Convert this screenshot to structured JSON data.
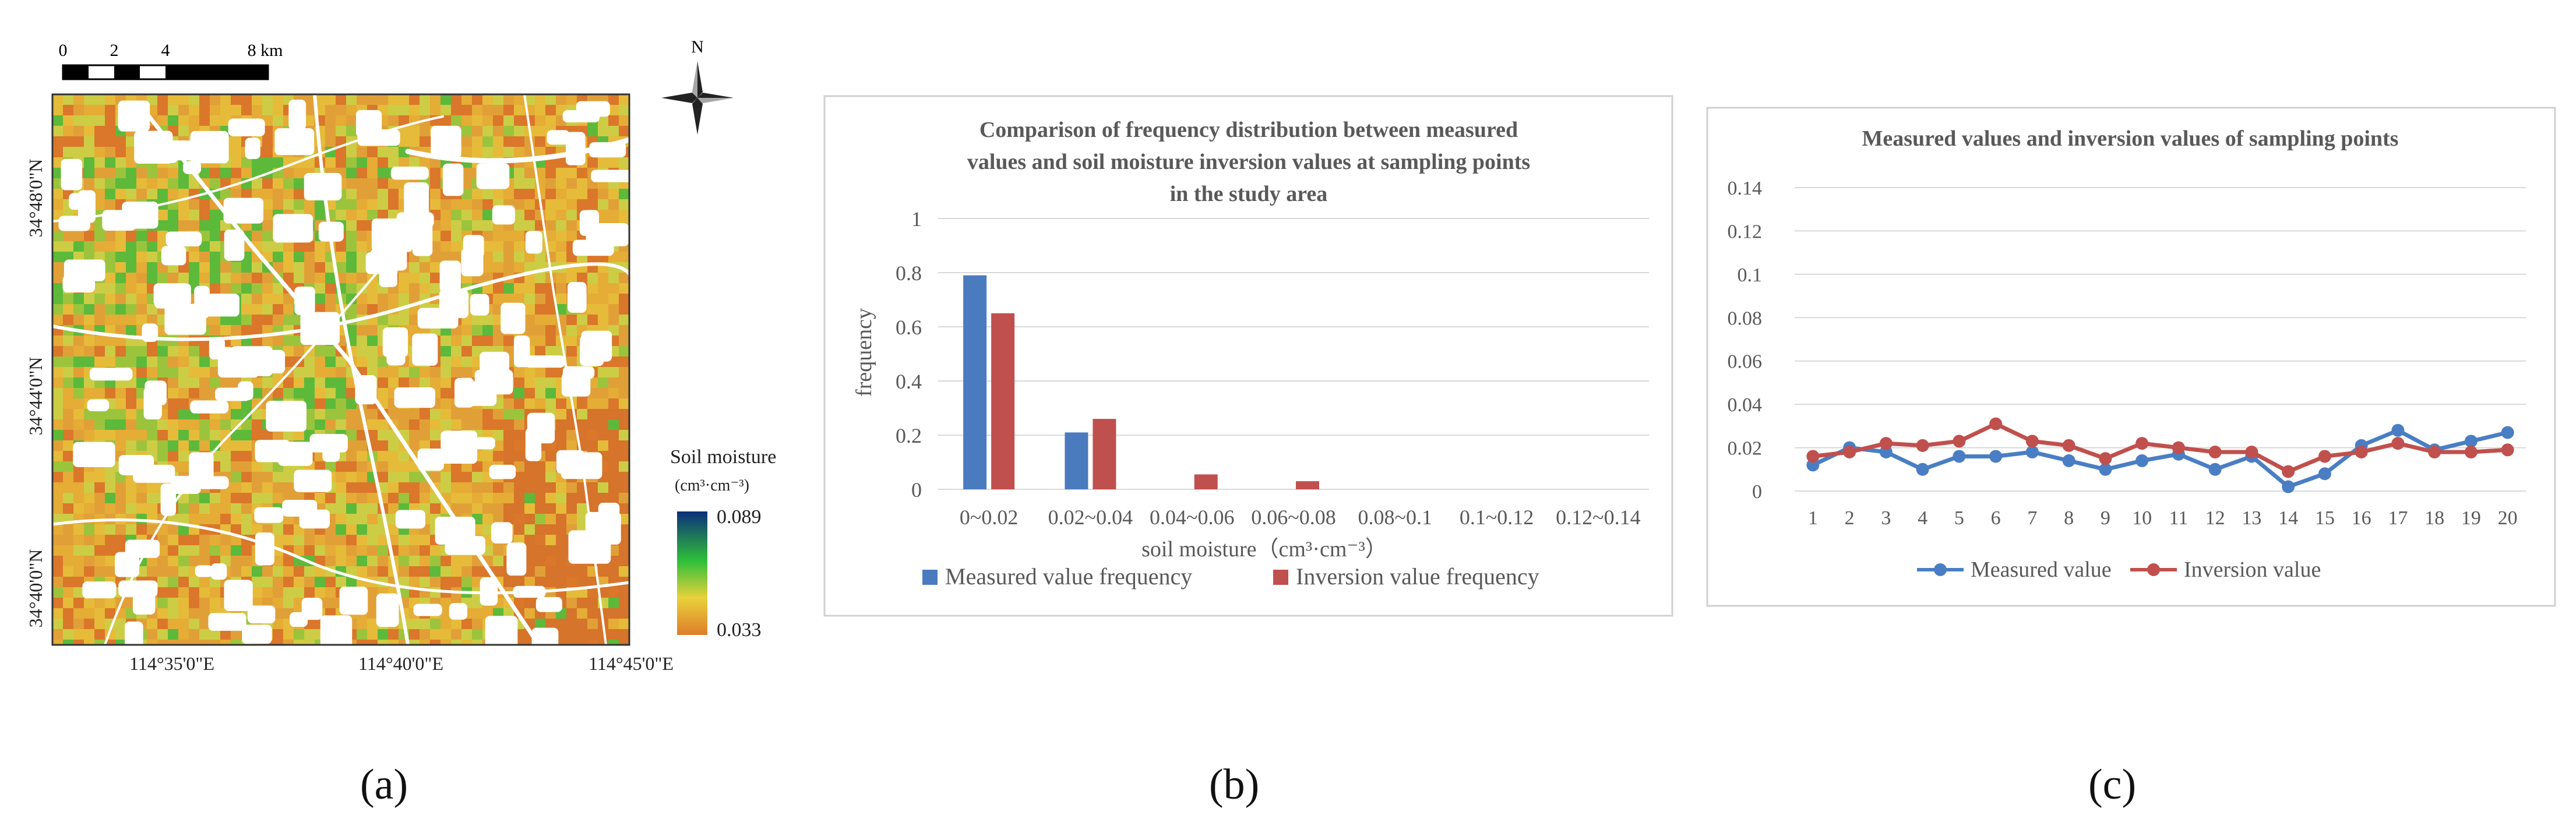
{
  "panels": {
    "a": "(a)",
    "b": "(b)",
    "c": "(c)"
  },
  "map": {
    "scale_labels": [
      "0",
      "2",
      "4",
      "8 km"
    ],
    "north": "N",
    "lat_labels": [
      "34°48'0\"N",
      "34°44'0\"N",
      "34°40'0\"N"
    ],
    "lon_labels": [
      "114°35'0\"E",
      "114°40'0\"E",
      "114°45'0\"E"
    ],
    "legend_title": "Soil moisture",
    "legend_unit": "(cm³·cm⁻³)",
    "legend_max": "0.089",
    "legend_min": "0.033",
    "colors": {
      "max": "#0b2f7a",
      "green": "#2fbf3a",
      "yellow": "#e9d23a",
      "min": "#de7d2a"
    }
  },
  "chart_data": [
    {
      "type": "bar",
      "title": "Comparison of frequency distribution between measured values and soil moisture inversion values at sampling points in the study area",
      "title_lines": [
        "Comparison of frequency distribution between measured",
        "values and soil moisture inversion values at sampling points",
        "in the study area"
      ],
      "xlabel": "soil moisture（cm³·cm⁻³）",
      "ylabel": "frequency",
      "categories": [
        "0~0.02",
        "0.02~0.04",
        "0.04~0.06",
        "0.06~0.08",
        "0.08~0.1",
        "0.1~0.12",
        "0.12~0.14"
      ],
      "ylim": [
        0,
        1
      ],
      "yticks": [
        "0",
        "0.2",
        "0.4",
        "0.6",
        "0.8",
        "1"
      ],
      "series": [
        {
          "name": "Measured value frequency",
          "color": "#4a7bbf",
          "values": [
            0.79,
            0.21,
            0,
            0,
            0,
            0,
            0
          ]
        },
        {
          "name": "Inversion value frequency",
          "color": "#c0504d",
          "values": [
            0.65,
            0.26,
            0.055,
            0.03,
            0,
            0,
            0
          ]
        }
      ],
      "grid": true,
      "legend": "bottom"
    },
    {
      "type": "line",
      "title": "Measured values and inversion values of sampling points",
      "x": [
        "1",
        "2",
        "3",
        "4",
        "5",
        "6",
        "7",
        "8",
        "9",
        "10",
        "11",
        "12",
        "13",
        "14",
        "15",
        "16",
        "17",
        "18",
        "19",
        "20"
      ],
      "ylim": [
        0,
        0.14
      ],
      "yticks": [
        "0",
        "0.02",
        "0.04",
        "0.06",
        "0.08",
        "0.1",
        "0.12",
        "0.14"
      ],
      "series": [
        {
          "name": "Measured value",
          "color": "#4a7ec4",
          "values": [
            0.012,
            0.02,
            0.018,
            0.01,
            0.016,
            0.016,
            0.018,
            0.014,
            0.01,
            0.014,
            0.017,
            0.01,
            0.016,
            0.002,
            0.008,
            0.021,
            0.028,
            0.019,
            0.023,
            0.027
          ]
        },
        {
          "name": "Inversion value",
          "color": "#c0504d",
          "values": [
            0.016,
            0.018,
            0.022,
            0.021,
            0.023,
            0.031,
            0.023,
            0.021,
            0.015,
            0.022,
            0.02,
            0.018,
            0.018,
            0.009,
            0.016,
            0.018,
            0.022,
            0.018,
            0.018,
            0.019
          ]
        }
      ],
      "grid": true,
      "legend": "bottom"
    }
  ]
}
